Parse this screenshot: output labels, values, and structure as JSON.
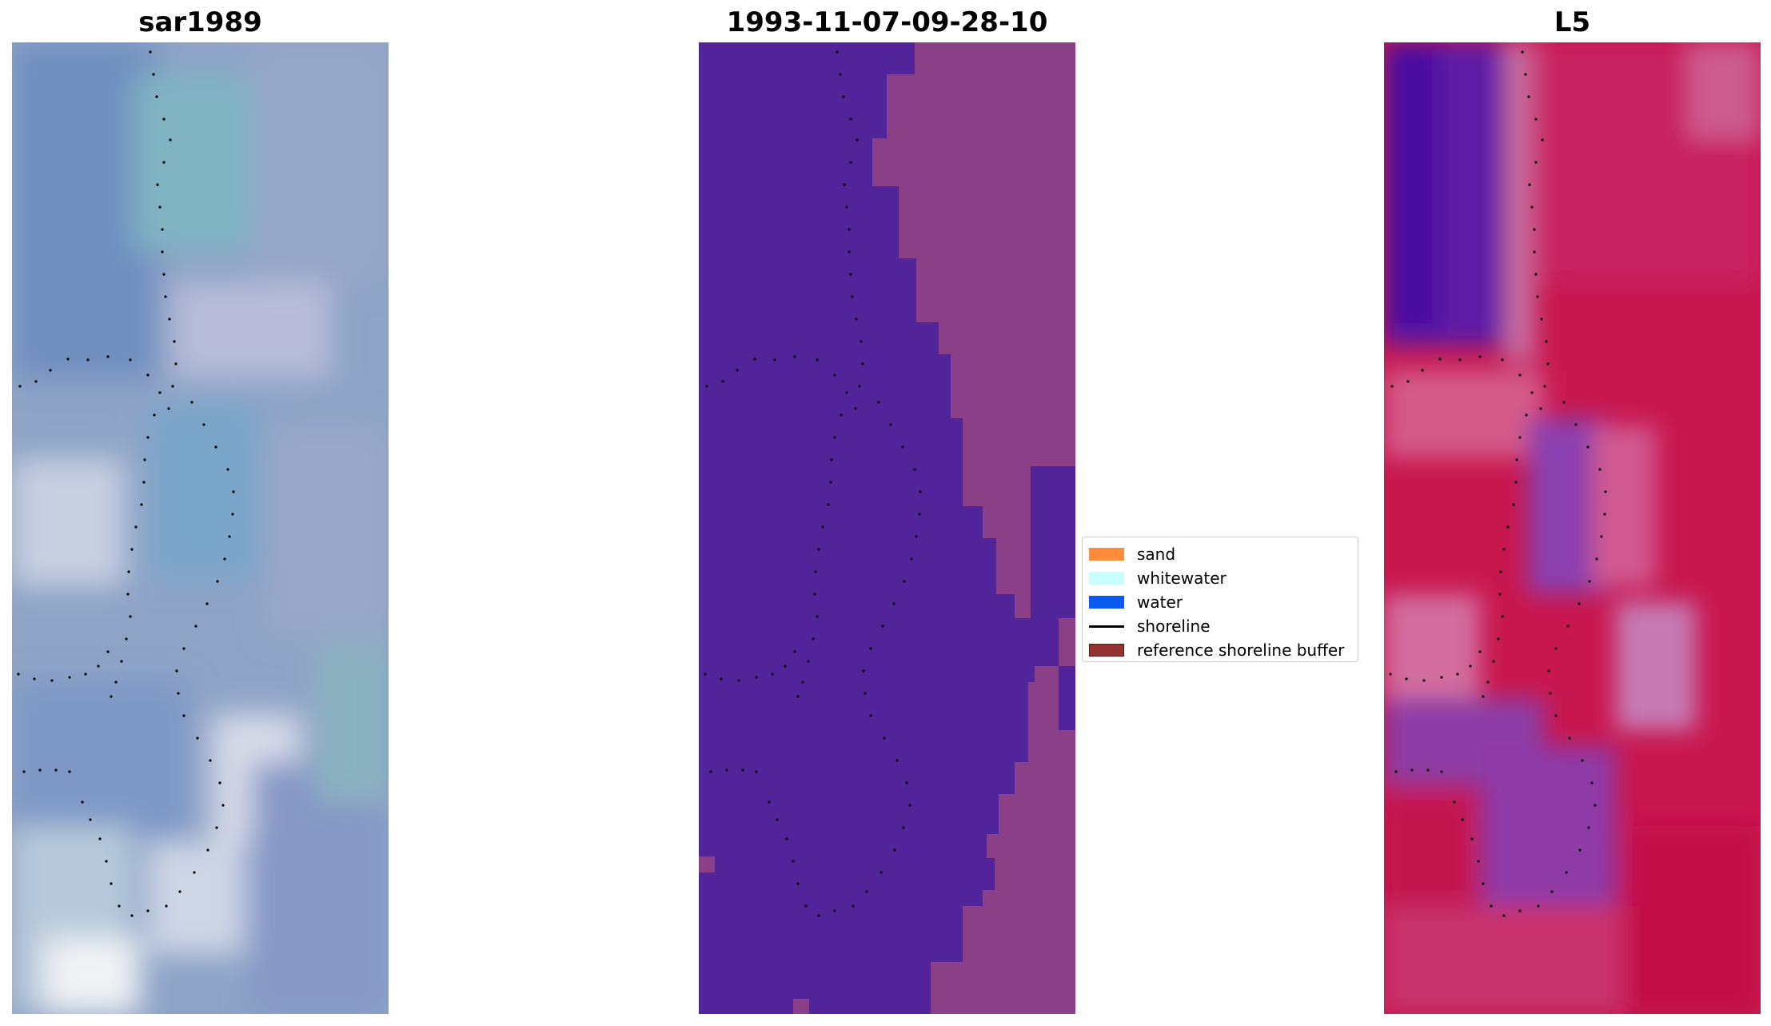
{
  "panels": {
    "left": {
      "title": "sar1989"
    },
    "middle": {
      "title": "1993-11-07-09-28-10"
    },
    "right": {
      "title": "L5"
    }
  },
  "legend": {
    "items": [
      {
        "label": "sand",
        "color": "#ff8c3a",
        "kind": "patch"
      },
      {
        "label": "whitewater",
        "color": "#c8ffff",
        "kind": "patch"
      },
      {
        "label": "water",
        "color": "#0a5af0",
        "kind": "patch"
      },
      {
        "label": "shoreline",
        "color": "#000000",
        "kind": "line"
      },
      {
        "label": "reference shoreline buffer",
        "color": "#963232",
        "kind": "patch"
      }
    ]
  },
  "colors": {
    "mid_background": "#52249a",
    "mid_land": "#8b3f86",
    "right_base": "#c4164e",
    "right_purple": "#7a2aa8",
    "left_base": "#8fa6c4"
  }
}
